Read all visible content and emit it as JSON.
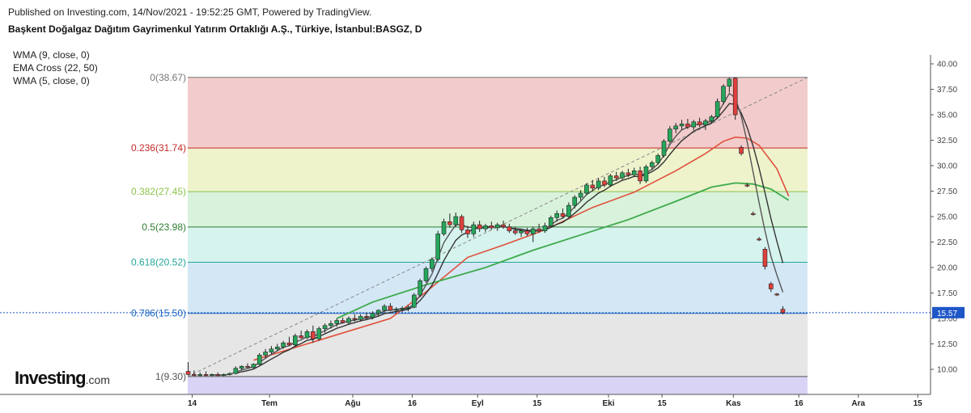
{
  "header": {
    "published": "Published on Investing.com, 14/Nov/2021 - 19:52:25 GMT, Powered by TradingView.",
    "symbol_title": "Başkent Doğalgaz Dağıtım Gayrimenkul Yatırım Ortaklığı A.Ş., Türkiye, İstanbul:BASGZ, D"
  },
  "indicators": [
    "WMA (9, close, 0)",
    "EMA Cross (22, 50)",
    "WMA (5, close, 0)"
  ],
  "logo": {
    "brand": "Investing",
    "suffix": ".com"
  },
  "colors": {
    "bull": "#26a65b",
    "bear": "#e0403c",
    "wma": "#333333",
    "ema_fast": "#e0503a",
    "ema_slow": "#3daa4a",
    "price_line": "#1e56c8"
  },
  "chart_data": {
    "type": "candlestick",
    "ylim": [
      8.0,
      41.0
    ],
    "y_ticks": [
      "10.00",
      "12.50",
      "15.00",
      "17.50",
      "20.00",
      "22.50",
      "25.00",
      "27.50",
      "30.00",
      "32.50",
      "35.00",
      "37.50",
      "40.00"
    ],
    "x_ticks": [
      {
        "label": "14",
        "idx": 0
      },
      {
        "label": "Tem",
        "idx": 13
      },
      {
        "label": "Ağu",
        "idx": 27
      },
      {
        "label": "16",
        "idx": 37
      },
      {
        "label": "Eyl",
        "idx": 48
      },
      {
        "label": "15",
        "idx": 58
      },
      {
        "label": "Eki",
        "idx": 70
      },
      {
        "label": "15",
        "idx": 79
      },
      {
        "label": "Kas",
        "idx": 91
      },
      {
        "label": "16",
        "idx": 102
      },
      {
        "label": "Ara",
        "idx": 112
      },
      {
        "label": "15",
        "idx": 122
      }
    ],
    "last_price": "15.57",
    "fibonacci": [
      {
        "label": "0(38.67)",
        "level": 38.67,
        "color": "#777777",
        "fill": "#f2cccc"
      },
      {
        "label": "0.236(31.74)",
        "level": 31.74,
        "color": "#c62828",
        "fill": "#eef3cc"
      },
      {
        "label": "0.382(27.45)",
        "level": 27.45,
        "color": "#8bc34a",
        "fill": "#d9f2dc"
      },
      {
        "label": "0.5(23.98)",
        "level": 23.98,
        "color": "#2e7d32",
        "fill": "#d6f3ee"
      },
      {
        "label": "0.618(20.52)",
        "level": 20.52,
        "color": "#26a69a",
        "fill": "#d4e7f5"
      },
      {
        "label": "0.786(15.50)",
        "level": 15.5,
        "color": "#1565c0",
        "fill": "#e6e6e6"
      },
      {
        "label": "1(9.30)",
        "level": 9.3,
        "color": "#555555",
        "fill": "#d9d4f5"
      }
    ],
    "candles": [
      {
        "o": 9.8,
        "h": 10.7,
        "l": 9.4,
        "c": 9.5
      },
      {
        "o": 9.5,
        "h": 9.9,
        "l": 9.3,
        "c": 9.4
      },
      {
        "o": 9.4,
        "h": 9.7,
        "l": 9.3,
        "c": 9.5
      },
      {
        "o": 9.5,
        "h": 9.8,
        "l": 9.3,
        "c": 9.4
      },
      {
        "o": 9.4,
        "h": 9.6,
        "l": 9.3,
        "c": 9.5
      },
      {
        "o": 9.5,
        "h": 9.7,
        "l": 9.3,
        "c": 9.4
      },
      {
        "o": 9.4,
        "h": 9.6,
        "l": 9.3,
        "c": 9.5
      },
      {
        "o": 9.5,
        "h": 9.7,
        "l": 9.4,
        "c": 9.6
      },
      {
        "o": 9.6,
        "h": 10.3,
        "l": 9.5,
        "c": 10.1
      },
      {
        "o": 10.1,
        "h": 10.4,
        "l": 9.9,
        "c": 10.3
      },
      {
        "o": 10.3,
        "h": 10.6,
        "l": 10.1,
        "c": 10.2
      },
      {
        "o": 10.2,
        "h": 10.6,
        "l": 10.0,
        "c": 10.5
      },
      {
        "o": 10.5,
        "h": 11.6,
        "l": 10.4,
        "c": 11.4
      },
      {
        "o": 11.4,
        "h": 12.0,
        "l": 11.1,
        "c": 11.7
      },
      {
        "o": 11.7,
        "h": 12.3,
        "l": 11.5,
        "c": 12.0
      },
      {
        "o": 12.0,
        "h": 12.5,
        "l": 11.8,
        "c": 12.2
      },
      {
        "o": 12.2,
        "h": 12.8,
        "l": 12.0,
        "c": 12.6
      },
      {
        "o": 12.6,
        "h": 13.2,
        "l": 12.3,
        "c": 12.4
      },
      {
        "o": 12.4,
        "h": 13.5,
        "l": 12.2,
        "c": 13.3
      },
      {
        "o": 13.3,
        "h": 13.8,
        "l": 13.0,
        "c": 13.1
      },
      {
        "o": 13.1,
        "h": 13.9,
        "l": 13.0,
        "c": 13.7
      },
      {
        "o": 13.7,
        "h": 14.3,
        "l": 12.6,
        "c": 13.0
      },
      {
        "o": 13.0,
        "h": 14.2,
        "l": 12.8,
        "c": 14.0
      },
      {
        "o": 14.0,
        "h": 14.5,
        "l": 13.6,
        "c": 14.3
      },
      {
        "o": 14.3,
        "h": 14.8,
        "l": 14.0,
        "c": 14.5
      },
      {
        "o": 14.5,
        "h": 15.0,
        "l": 14.2,
        "c": 14.8
      },
      {
        "o": 14.8,
        "h": 15.1,
        "l": 14.5,
        "c": 14.6
      },
      {
        "o": 14.6,
        "h": 15.2,
        "l": 14.4,
        "c": 15.0
      },
      {
        "o": 15.0,
        "h": 15.4,
        "l": 14.7,
        "c": 14.9
      },
      {
        "o": 14.9,
        "h": 15.4,
        "l": 14.7,
        "c": 15.2
      },
      {
        "o": 15.2,
        "h": 15.6,
        "l": 14.9,
        "c": 15.1
      },
      {
        "o": 15.1,
        "h": 15.7,
        "l": 14.9,
        "c": 15.5
      },
      {
        "o": 15.5,
        "h": 15.9,
        "l": 15.2,
        "c": 15.8
      },
      {
        "o": 15.8,
        "h": 16.4,
        "l": 15.5,
        "c": 16.2
      },
      {
        "o": 16.2,
        "h": 16.5,
        "l": 15.7,
        "c": 15.8
      },
      {
        "o": 15.8,
        "h": 16.1,
        "l": 15.5,
        "c": 15.9
      },
      {
        "o": 15.9,
        "h": 16.2,
        "l": 15.6,
        "c": 16.0
      },
      {
        "o": 16.0,
        "h": 16.3,
        "l": 15.7,
        "c": 16.1
      },
      {
        "o": 16.1,
        "h": 17.5,
        "l": 16.0,
        "c": 17.3
      },
      {
        "o": 17.3,
        "h": 18.9,
        "l": 17.1,
        "c": 18.7
      },
      {
        "o": 18.7,
        "h": 20.1,
        "l": 18.5,
        "c": 19.9
      },
      {
        "o": 19.9,
        "h": 21.0,
        "l": 19.6,
        "c": 20.8
      },
      {
        "o": 20.8,
        "h": 23.6,
        "l": 20.6,
        "c": 23.3
      },
      {
        "o": 23.3,
        "h": 24.8,
        "l": 23.1,
        "c": 24.5
      },
      {
        "o": 24.5,
        "h": 25.3,
        "l": 23.9,
        "c": 24.2
      },
      {
        "o": 24.2,
        "h": 25.4,
        "l": 24.0,
        "c": 25.0
      },
      {
        "o": 25.0,
        "h": 25.2,
        "l": 23.4,
        "c": 23.7
      },
      {
        "o": 23.7,
        "h": 24.1,
        "l": 22.9,
        "c": 23.3
      },
      {
        "o": 23.3,
        "h": 24.5,
        "l": 23.0,
        "c": 24.2
      },
      {
        "o": 24.2,
        "h": 24.6,
        "l": 23.5,
        "c": 23.8
      },
      {
        "o": 23.8,
        "h": 24.3,
        "l": 23.5,
        "c": 24.1
      },
      {
        "o": 24.1,
        "h": 24.5,
        "l": 23.7,
        "c": 23.9
      },
      {
        "o": 23.9,
        "h": 24.4,
        "l": 23.6,
        "c": 24.2
      },
      {
        "o": 24.2,
        "h": 24.6,
        "l": 23.8,
        "c": 24.0
      },
      {
        "o": 24.0,
        "h": 24.3,
        "l": 23.4,
        "c": 23.6
      },
      {
        "o": 23.6,
        "h": 24.0,
        "l": 23.2,
        "c": 23.4
      },
      {
        "o": 23.4,
        "h": 23.8,
        "l": 23.0,
        "c": 23.6
      },
      {
        "o": 23.6,
        "h": 23.9,
        "l": 23.1,
        "c": 23.3
      },
      {
        "o": 23.3,
        "h": 24.0,
        "l": 22.5,
        "c": 23.8
      },
      {
        "o": 23.8,
        "h": 24.3,
        "l": 23.4,
        "c": 23.6
      },
      {
        "o": 23.6,
        "h": 24.4,
        "l": 23.4,
        "c": 24.1
      },
      {
        "o": 24.1,
        "h": 25.1,
        "l": 23.9,
        "c": 24.9
      },
      {
        "o": 24.9,
        "h": 25.6,
        "l": 24.5,
        "c": 25.3
      },
      {
        "o": 25.3,
        "h": 25.8,
        "l": 24.8,
        "c": 25.0
      },
      {
        "o": 25.0,
        "h": 26.4,
        "l": 24.9,
        "c": 26.1
      },
      {
        "o": 26.1,
        "h": 27.1,
        "l": 25.8,
        "c": 26.9
      },
      {
        "o": 26.9,
        "h": 27.6,
        "l": 26.6,
        "c": 27.3
      },
      {
        "o": 27.3,
        "h": 28.3,
        "l": 27.1,
        "c": 28.1
      },
      {
        "o": 28.1,
        "h": 28.6,
        "l": 27.5,
        "c": 27.8
      },
      {
        "o": 27.8,
        "h": 28.8,
        "l": 27.6,
        "c": 28.5
      },
      {
        "o": 28.5,
        "h": 28.9,
        "l": 27.9,
        "c": 28.1
      },
      {
        "o": 28.1,
        "h": 29.2,
        "l": 27.9,
        "c": 29.0
      },
      {
        "o": 29.0,
        "h": 29.4,
        "l": 28.5,
        "c": 28.8
      },
      {
        "o": 28.8,
        "h": 29.5,
        "l": 28.6,
        "c": 29.3
      },
      {
        "o": 29.3,
        "h": 29.7,
        "l": 28.9,
        "c": 29.1
      },
      {
        "o": 29.1,
        "h": 29.8,
        "l": 28.9,
        "c": 29.5
      },
      {
        "o": 29.5,
        "h": 29.9,
        "l": 28.2,
        "c": 28.5
      },
      {
        "o": 28.5,
        "h": 30.1,
        "l": 28.3,
        "c": 29.9
      },
      {
        "o": 29.9,
        "h": 30.5,
        "l": 29.6,
        "c": 30.3
      },
      {
        "o": 30.3,
        "h": 31.2,
        "l": 30.1,
        "c": 31.0
      },
      {
        "o": 31.0,
        "h": 32.6,
        "l": 30.8,
        "c": 32.4
      },
      {
        "o": 32.4,
        "h": 33.9,
        "l": 32.2,
        "c": 33.6
      },
      {
        "o": 33.6,
        "h": 34.2,
        "l": 33.2,
        "c": 33.9
      },
      {
        "o": 33.9,
        "h": 34.5,
        "l": 33.5,
        "c": 34.1
      },
      {
        "o": 34.1,
        "h": 34.6,
        "l": 33.6,
        "c": 33.8
      },
      {
        "o": 33.8,
        "h": 34.5,
        "l": 33.5,
        "c": 34.3
      },
      {
        "o": 34.3,
        "h": 34.7,
        "l": 33.8,
        "c": 34.0
      },
      {
        "o": 34.0,
        "h": 34.6,
        "l": 33.5,
        "c": 34.4
      },
      {
        "o": 34.4,
        "h": 35.0,
        "l": 34.1,
        "c": 34.8
      },
      {
        "o": 34.8,
        "h": 36.6,
        "l": 34.6,
        "c": 36.3
      },
      {
        "o": 36.3,
        "h": 38.0,
        "l": 36.0,
        "c": 37.8
      },
      {
        "o": 37.8,
        "h": 38.67,
        "l": 37.2,
        "c": 38.5
      },
      {
        "o": 38.6,
        "h": 38.67,
        "l": 34.5,
        "c": 35.0
      },
      {
        "o": 31.8,
        "h": 32.0,
        "l": 31.0,
        "c": 31.2
      },
      {
        "o": 28.1,
        "h": 28.3,
        "l": 27.9,
        "c": 28.0
      },
      {
        "o": 25.3,
        "h": 25.5,
        "l": 25.1,
        "c": 25.2
      },
      {
        "o": 22.8,
        "h": 23.0,
        "l": 22.6,
        "c": 22.7
      },
      {
        "o": 21.8,
        "h": 22.0,
        "l": 19.8,
        "c": 20.1
      },
      {
        "o": 18.4,
        "h": 18.6,
        "l": 17.6,
        "c": 17.9
      },
      {
        "o": 17.4,
        "h": 17.5,
        "l": 17.2,
        "c": 17.3
      },
      {
        "o": 15.9,
        "h": 16.2,
        "l": 15.4,
        "c": 15.57
      }
    ],
    "ema_fast_x": [
      11,
      25,
      34,
      40,
      47,
      53,
      60,
      68,
      75,
      82,
      87,
      90,
      92,
      94,
      96,
      99,
      101
    ],
    "ema_fast_y": [
      10.9,
      13.4,
      15.0,
      17.6,
      21.0,
      22.2,
      23.7,
      25.9,
      27.4,
      29.5,
      31.2,
      32.4,
      32.8,
      32.7,
      32.0,
      29.7,
      27.0
    ],
    "ema_slow_x": [
      25,
      31,
      40,
      50,
      58,
      66,
      74,
      82,
      88,
      92,
      95,
      98,
      101
    ],
    "ema_slow_y": [
      15.0,
      16.6,
      18.3,
      20.0,
      21.7,
      23.2,
      24.7,
      26.5,
      27.9,
      28.3,
      28.2,
      27.7,
      26.6
    ]
  }
}
